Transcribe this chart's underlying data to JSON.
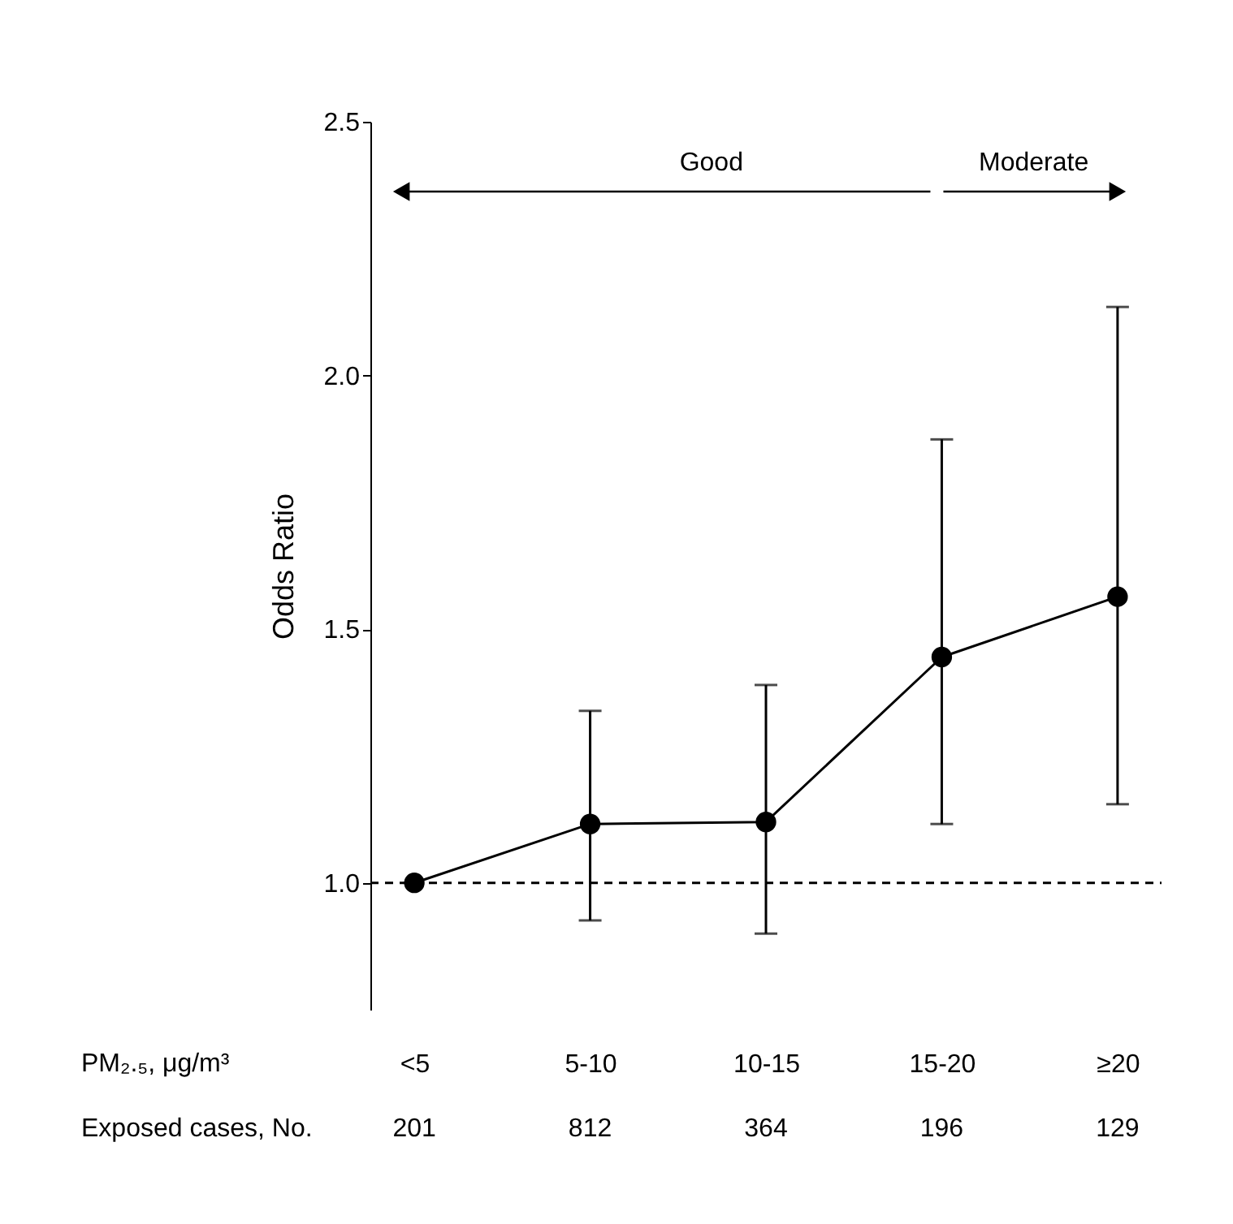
{
  "chart_data": {
    "type": "line",
    "ylabel": "Odds Ratio",
    "xlabel": "PM₂.₅, μg/m³",
    "categories": [
      "<5",
      "5-10",
      "10-15",
      "15-20",
      "≥20"
    ],
    "series": [
      {
        "color": "#000000",
        "values": [
          1.0,
          1.116,
          1.12,
          1.445,
          1.564
        ],
        "errors": [
          null,
          [
            0.926,
            1.339
          ],
          [
            0.9,
            1.39
          ],
          [
            1.116,
            1.874
          ],
          [
            1.155,
            2.135
          ]
        ]
      }
    ],
    "marker": "circle",
    "ylim": [
      0.75,
      2.5
    ],
    "yticks": [
      {
        "value": 1,
        "label": "1.0"
      },
      {
        "value": 1.5,
        "label": "1.5"
      },
      {
        "value": 2,
        "label": "2.0"
      },
      {
        "value": 2.5,
        "label": "2.5"
      }
    ],
    "grid": false,
    "ref_lines": [
      {
        "axis": "y",
        "value": 1,
        "line_style": "dashed",
        "color": "#000000"
      }
    ],
    "annotations": [
      "Good",
      "Moderate",
      "Exposed cases, No.",
      "201",
      "812",
      "364",
      "196",
      "129"
    ]
  }
}
